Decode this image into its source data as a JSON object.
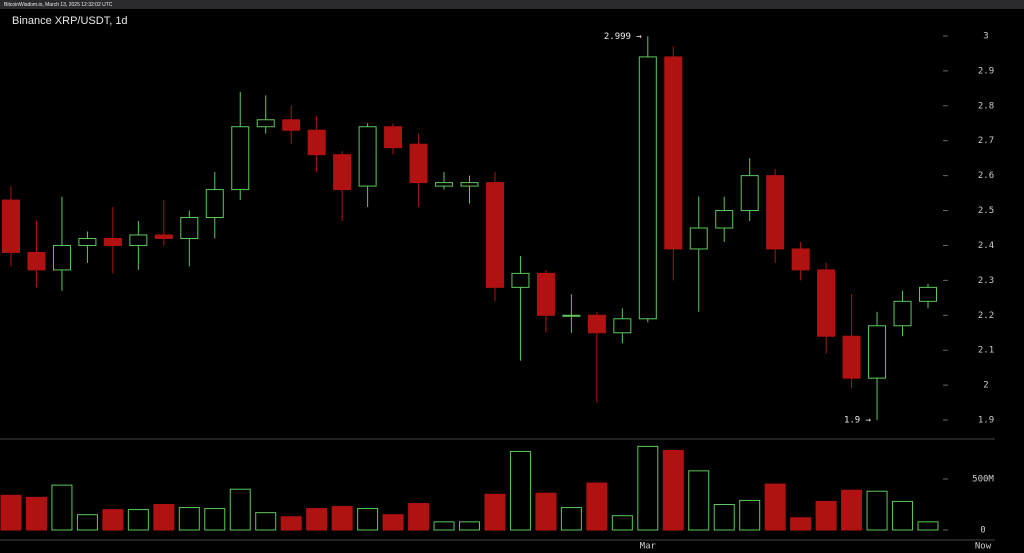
{
  "header": "BitcoinWisdom.io, March 13, 2025 12:32:02 UTC",
  "chart_data": {
    "type": "candlestick",
    "title": "Binance XRP/USDT, 1d",
    "categories": [
      null,
      null,
      null,
      null,
      null,
      null,
      null,
      null,
      null,
      null,
      null,
      null,
      null,
      null,
      null,
      null,
      null,
      null,
      null,
      null,
      null,
      null,
      null,
      null,
      null,
      "Mar",
      null,
      null,
      null,
      null,
      null,
      null,
      null,
      null,
      null,
      null,
      null
    ],
    "now_label": "Now",
    "open": [
      2.53,
      2.38,
      2.33,
      2.4,
      2.42,
      2.4,
      2.43,
      2.42,
      2.48,
      2.56,
      2.74,
      2.76,
      2.73,
      2.66,
      2.57,
      2.74,
      2.69,
      2.57,
      2.57,
      2.58,
      2.28,
      2.32,
      2.2,
      2.2,
      2.15,
      2.19,
      2.94,
      2.39,
      2.45,
      2.5,
      2.6,
      2.39,
      2.33,
      2.14,
      2.02,
      2.17,
      2.24
    ],
    "high": [
      2.57,
      2.47,
      2.54,
      2.44,
      2.51,
      2.47,
      2.53,
      2.5,
      2.61,
      2.84,
      2.83,
      2.8,
      2.77,
      2.67,
      2.75,
      2.75,
      2.72,
      2.61,
      2.6,
      2.61,
      2.37,
      2.33,
      2.26,
      2.21,
      2.22,
      2.999,
      2.97,
      2.54,
      2.54,
      2.65,
      2.62,
      2.41,
      2.35,
      2.26,
      2.21,
      2.27,
      2.29
    ],
    "low": [
      2.34,
      2.28,
      2.27,
      2.35,
      2.32,
      2.33,
      2.4,
      2.34,
      2.42,
      2.53,
      2.72,
      2.69,
      2.61,
      2.47,
      2.51,
      2.66,
      2.51,
      2.56,
      2.52,
      2.24,
      2.07,
      2.15,
      2.15,
      1.95,
      2.12,
      2.18,
      2.3,
      2.21,
      2.41,
      2.47,
      2.35,
      2.3,
      2.09,
      1.99,
      1.9,
      2.14,
      2.22
    ],
    "close": [
      2.38,
      2.33,
      2.4,
      2.42,
      2.4,
      2.43,
      2.42,
      2.48,
      2.56,
      2.74,
      2.76,
      2.73,
      2.66,
      2.56,
      2.74,
      2.68,
      2.58,
      2.58,
      2.58,
      2.28,
      2.32,
      2.2,
      2.2,
      2.15,
      2.19,
      2.94,
      2.39,
      2.45,
      2.5,
      2.6,
      2.39,
      2.33,
      2.14,
      2.02,
      2.17,
      2.24,
      2.28
    ],
    "volume": [
      340,
      320,
      440,
      150,
      200,
      200,
      250,
      220,
      210,
      400,
      170,
      130,
      210,
      230,
      210,
      150,
      260,
      80,
      80,
      350,
      770,
      360,
      220,
      460,
      140,
      820,
      780,
      580,
      250,
      290,
      450,
      120,
      280,
      390,
      380,
      280,
      80
    ],
    "up_color": "#5cc85c",
    "down_color": "#b01212",
    "ylim": [
      1.85,
      3.05
    ],
    "yticks": [
      1.9,
      2,
      2.1,
      2.2,
      2.3,
      2.4,
      2.5,
      2.6,
      2.7,
      2.8,
      2.9,
      3
    ],
    "vlim": [
      0,
      900
    ],
    "vticks": [
      0,
      {
        "value": 500,
        "label": "500M"
      }
    ],
    "annotations": [
      {
        "label": "2.999 →",
        "candle": 25,
        "value": 2.999
      },
      {
        "label": "1.9 →",
        "candle": 34,
        "value": 1.9
      }
    ]
  }
}
